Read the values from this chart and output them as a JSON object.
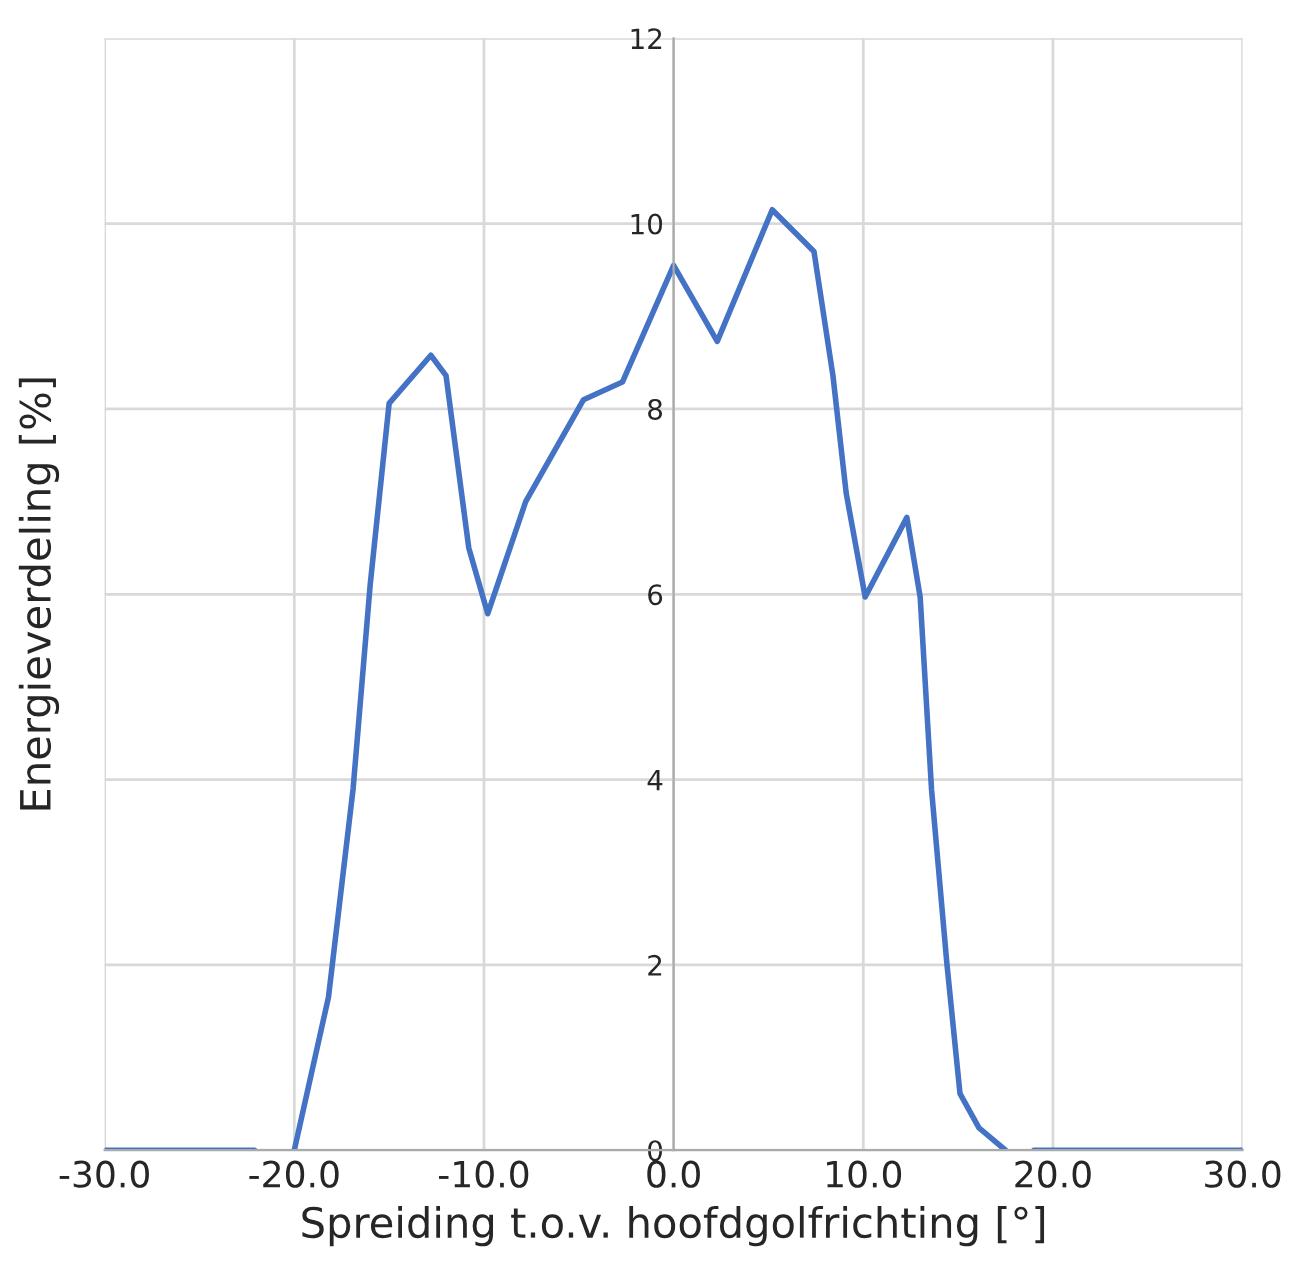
{
  "chart_data": {
    "type": "line",
    "xlabel": "Spreiding t.o.v. hoofdgolfrichting [°]",
    "ylabel": "Energieverdeling [%]",
    "x": [
      -30,
      -22.1,
      -21,
      -20,
      -18.2,
      -16.9,
      -16.0,
      -15.0,
      -12.8,
      -12.0,
      -10.8,
      -9.8,
      -7.8,
      -4.75,
      -2.7,
      0.0,
      2.3,
      5.2,
      7.4,
      8.4,
      9.1,
      10.1,
      12.3,
      13.0,
      13.6,
      14.4,
      15.1,
      16.1,
      17.5,
      18.2,
      19,
      30
    ],
    "series": [
      {
        "color": "#4472c4",
        "values": [
          0,
          0,
          null,
          0,
          1.65,
          3.9,
          6.1,
          8.06,
          8.58,
          8.36,
          6.5,
          5.79,
          7.0,
          8.1,
          8.29,
          9.55,
          8.73,
          10.15,
          9.7,
          8.36,
          7.09,
          5.97,
          6.83,
          5.97,
          3.89,
          2.03,
          0.61,
          0.24,
          0,
          null,
          0,
          0
        ]
      }
    ],
    "xlim": [
      -30,
      30
    ],
    "xticks": [
      {
        "value": -30,
        "label": "-30.0"
      },
      {
        "value": -20,
        "label": "-20.0"
      },
      {
        "value": -10,
        "label": "-10.0"
      },
      {
        "value": 0,
        "label": "0.0"
      },
      {
        "value": 10,
        "label": "10.0"
      },
      {
        "value": 20,
        "label": "20.0"
      },
      {
        "value": 30,
        "label": "30.0"
      }
    ],
    "ylim": [
      0,
      12
    ],
    "yticks": [
      0,
      2,
      4,
      6,
      8,
      10,
      12
    ],
    "grid": true,
    "marker": "none",
    "line_style": "solid"
  }
}
